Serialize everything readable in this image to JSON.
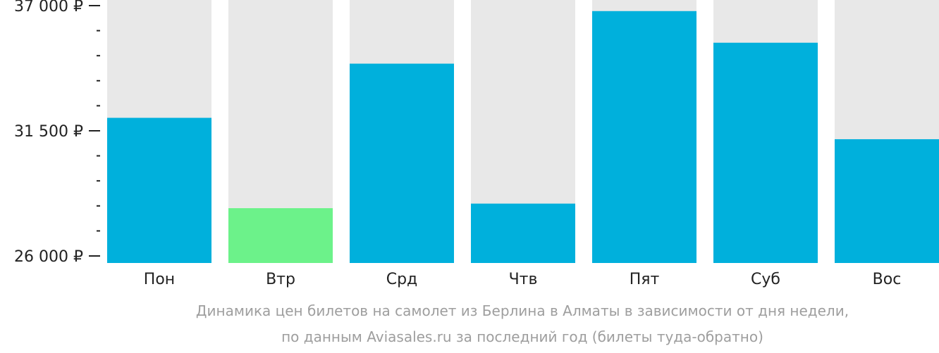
{
  "chart_data": {
    "type": "bar",
    "categories": [
      "Пон",
      "Втр",
      "Срд",
      "Чтв",
      "Пят",
      "Суб",
      "Вос"
    ],
    "values": [
      32070,
      28100,
      34450,
      28300,
      36760,
      35370,
      31130
    ],
    "ylim": [
      26000,
      37000
    ],
    "yticks": [
      {
        "value": 37000,
        "label": "37 000 ₽"
      },
      {
        "value": 31500,
        "label": "31 500 ₽"
      },
      {
        "value": 26000,
        "label": "26 000 ₽"
      }
    ],
    "minor_ticks_per_interval": 4,
    "legend": "none",
    "grid": false
  },
  "caption": {
    "line1": "Динамика цен билетов на самолет из Берлина в Алматы в зависимости от дня недели,",
    "line2": "по данным Aviasales.ru за последний год (билеты туда-обратно)"
  },
  "colors": {
    "bar": "#00b0dc",
    "bar_lowest": "#6cf28a",
    "bar_background": "#e8e8e8",
    "axis": "#222222",
    "caption": "#9e9e9e"
  }
}
